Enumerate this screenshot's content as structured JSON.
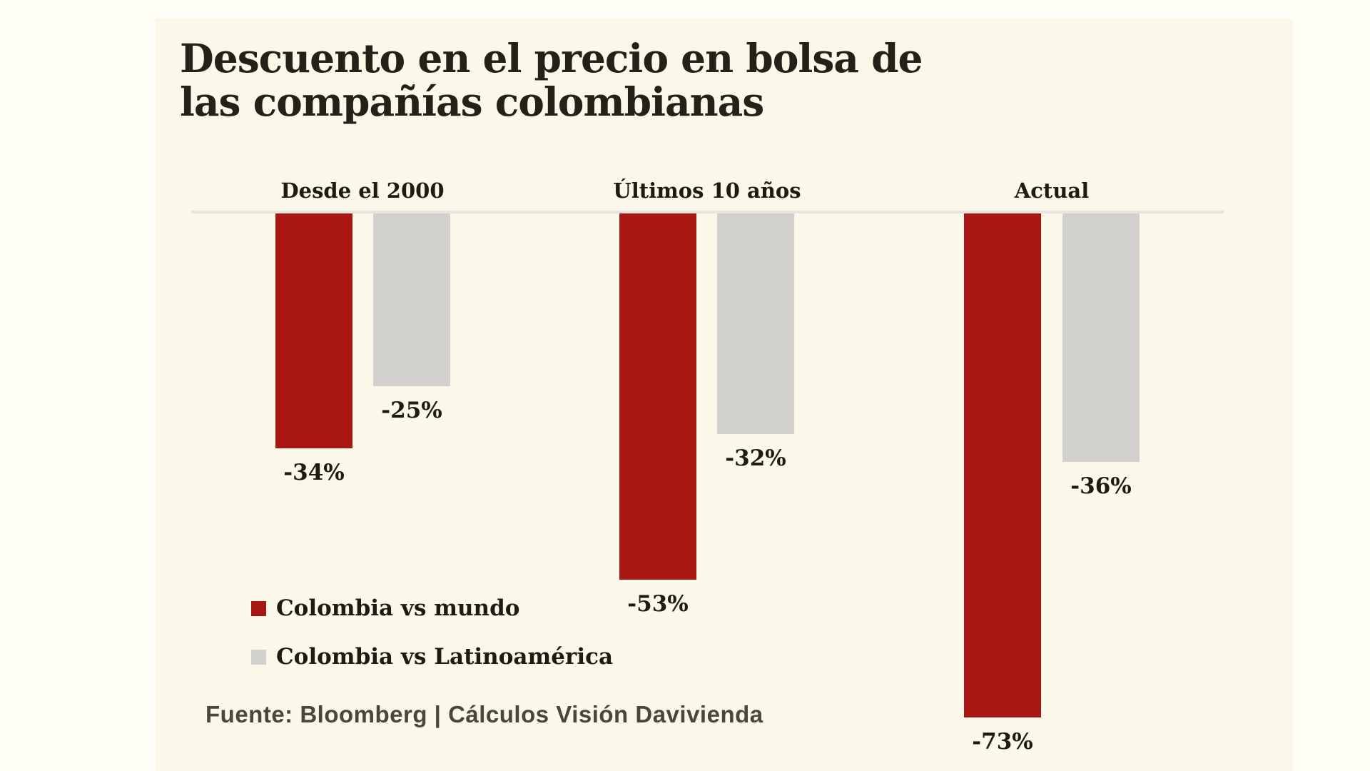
{
  "page": {
    "background_color": "#fffef6",
    "panel_color": "#fbf7e9",
    "baseline_color": "#e7e5e0",
    "text_color": "#1f1a12"
  },
  "header": {
    "title_line1": "Descuento en el precio en bolsa de",
    "title_line2": "las compañías colombianas"
  },
  "legend": {
    "items": [
      {
        "label": "Colombia vs mundo",
        "color": "#a81712"
      },
      {
        "label": "Colombia vs Latinoamérica",
        "color": "#d3d1cd"
      }
    ]
  },
  "footer": {
    "source": "Fuente: Bloomberg | Cálculos Visión Davivienda"
  },
  "chart_data": {
    "type": "bar",
    "title": "Descuento en el precio en bolsa de las compañías colombianas",
    "categories": [
      "Desde el 2000",
      "Últimos 10 años",
      "Actual"
    ],
    "series": [
      {
        "name": "Colombia vs mundo",
        "color": "#a81712",
        "values": [
          -34,
          -53,
          -73
        ],
        "labels": [
          "-34%",
          "-53%",
          "-73%"
        ]
      },
      {
        "name": "Colombia vs Latinoamérica",
        "color": "#d3d1cd",
        "values": [
          -25,
          -32,
          -36
        ],
        "labels": [
          "-25%",
          "-32%",
          "-36%"
        ]
      }
    ],
    "ylim": [
      -80,
      0
    ],
    "baseline": 0,
    "grid": false,
    "legend_position": "bottom-left",
    "value_labels": "below-bars",
    "source": "Fuente: Bloomberg | Cálculos Visión Davivienda"
  }
}
